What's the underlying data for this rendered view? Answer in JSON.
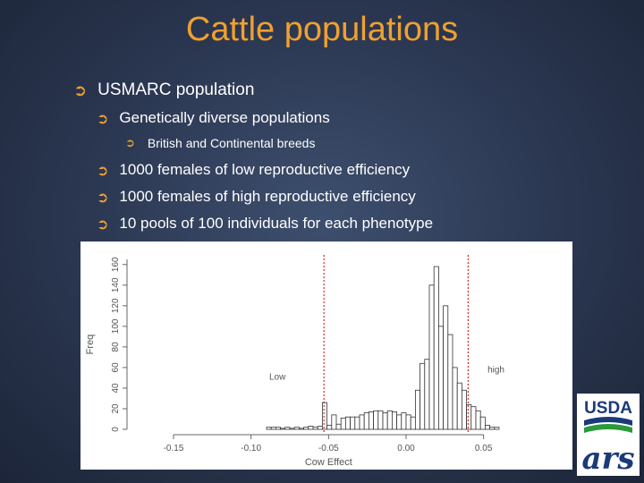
{
  "slide": {
    "title": "Cattle populations",
    "bullets": [
      {
        "level": 1,
        "text": "USMARC population"
      },
      {
        "level": 2,
        "text": "Genetically diverse populations"
      },
      {
        "level": 3,
        "text": "British and Continental breeds"
      },
      {
        "level": 2,
        "text": "1000 females of low reproductive efficiency"
      },
      {
        "level": 2,
        "text": "1000 females of high reproductive efficiency"
      },
      {
        "level": 2,
        "text": "10 pools of 100 individuals for each phenotype"
      }
    ]
  },
  "logo": {
    "usda_text": "USDA",
    "ars_text": "ars"
  },
  "colors": {
    "title": "#f0a030",
    "bullet_arrow": "#f0a030",
    "threshold_line": "#cc0000"
  },
  "icons": {
    "bullet": "circled-right-arrow-icon"
  },
  "chart_data": {
    "type": "bar",
    "xlabel": "Cow Effect",
    "ylabel": "Freq",
    "xticks": [
      "-0.15",
      "-0.10",
      "-0.05",
      "0.00",
      "0.05"
    ],
    "yticks": [
      "0",
      "20",
      "40",
      "60",
      "80",
      "100",
      "120",
      "140",
      "160"
    ],
    "xlim": [
      -0.18,
      0.09
    ],
    "ylim": [
      0,
      165
    ],
    "annotations": [
      {
        "text": "Low",
        "x": -0.083,
        "y": 48
      },
      {
        "text": "high",
        "x": 0.058,
        "y": 55
      }
    ],
    "thresholds": [
      -0.053,
      0.04
    ],
    "bins": [
      {
        "x": -0.09,
        "y": 2
      },
      {
        "x": -0.087,
        "y": 2
      },
      {
        "x": -0.084,
        "y": 2
      },
      {
        "x": -0.081,
        "y": 1
      },
      {
        "x": -0.078,
        "y": 2
      },
      {
        "x": -0.075,
        "y": 1
      },
      {
        "x": -0.072,
        "y": 2
      },
      {
        "x": -0.069,
        "y": 1
      },
      {
        "x": -0.066,
        "y": 2
      },
      {
        "x": -0.063,
        "y": 3
      },
      {
        "x": -0.06,
        "y": 2
      },
      {
        "x": -0.057,
        "y": 3
      },
      {
        "x": -0.054,
        "y": 26
      },
      {
        "x": -0.051,
        "y": 4
      },
      {
        "x": -0.048,
        "y": 14
      },
      {
        "x": -0.045,
        "y": 5
      },
      {
        "x": -0.042,
        "y": 11
      },
      {
        "x": -0.039,
        "y": 12
      },
      {
        "x": -0.036,
        "y": 12
      },
      {
        "x": -0.033,
        "y": 12
      },
      {
        "x": -0.03,
        "y": 14
      },
      {
        "x": -0.027,
        "y": 16
      },
      {
        "x": -0.024,
        "y": 17
      },
      {
        "x": -0.021,
        "y": 18
      },
      {
        "x": -0.018,
        "y": 18
      },
      {
        "x": -0.015,
        "y": 16
      },
      {
        "x": -0.012,
        "y": 18
      },
      {
        "x": -0.009,
        "y": 17
      },
      {
        "x": -0.006,
        "y": 14
      },
      {
        "x": -0.003,
        "y": 16
      },
      {
        "x": 0.0,
        "y": 14
      },
      {
        "x": 0.003,
        "y": 12
      },
      {
        "x": 0.006,
        "y": 38
      },
      {
        "x": 0.009,
        "y": 64
      },
      {
        "x": 0.012,
        "y": 68
      },
      {
        "x": 0.015,
        "y": 140
      },
      {
        "x": 0.018,
        "y": 158
      },
      {
        "x": 0.021,
        "y": 100
      },
      {
        "x": 0.024,
        "y": 120
      },
      {
        "x": 0.027,
        "y": 92
      },
      {
        "x": 0.03,
        "y": 60
      },
      {
        "x": 0.033,
        "y": 45
      },
      {
        "x": 0.036,
        "y": 38
      },
      {
        "x": 0.039,
        "y": 24
      },
      {
        "x": 0.042,
        "y": 22
      },
      {
        "x": 0.045,
        "y": 18
      },
      {
        "x": 0.048,
        "y": 12
      },
      {
        "x": 0.051,
        "y": 4
      },
      {
        "x": 0.054,
        "y": 2
      },
      {
        "x": 0.057,
        "y": 2
      }
    ]
  }
}
